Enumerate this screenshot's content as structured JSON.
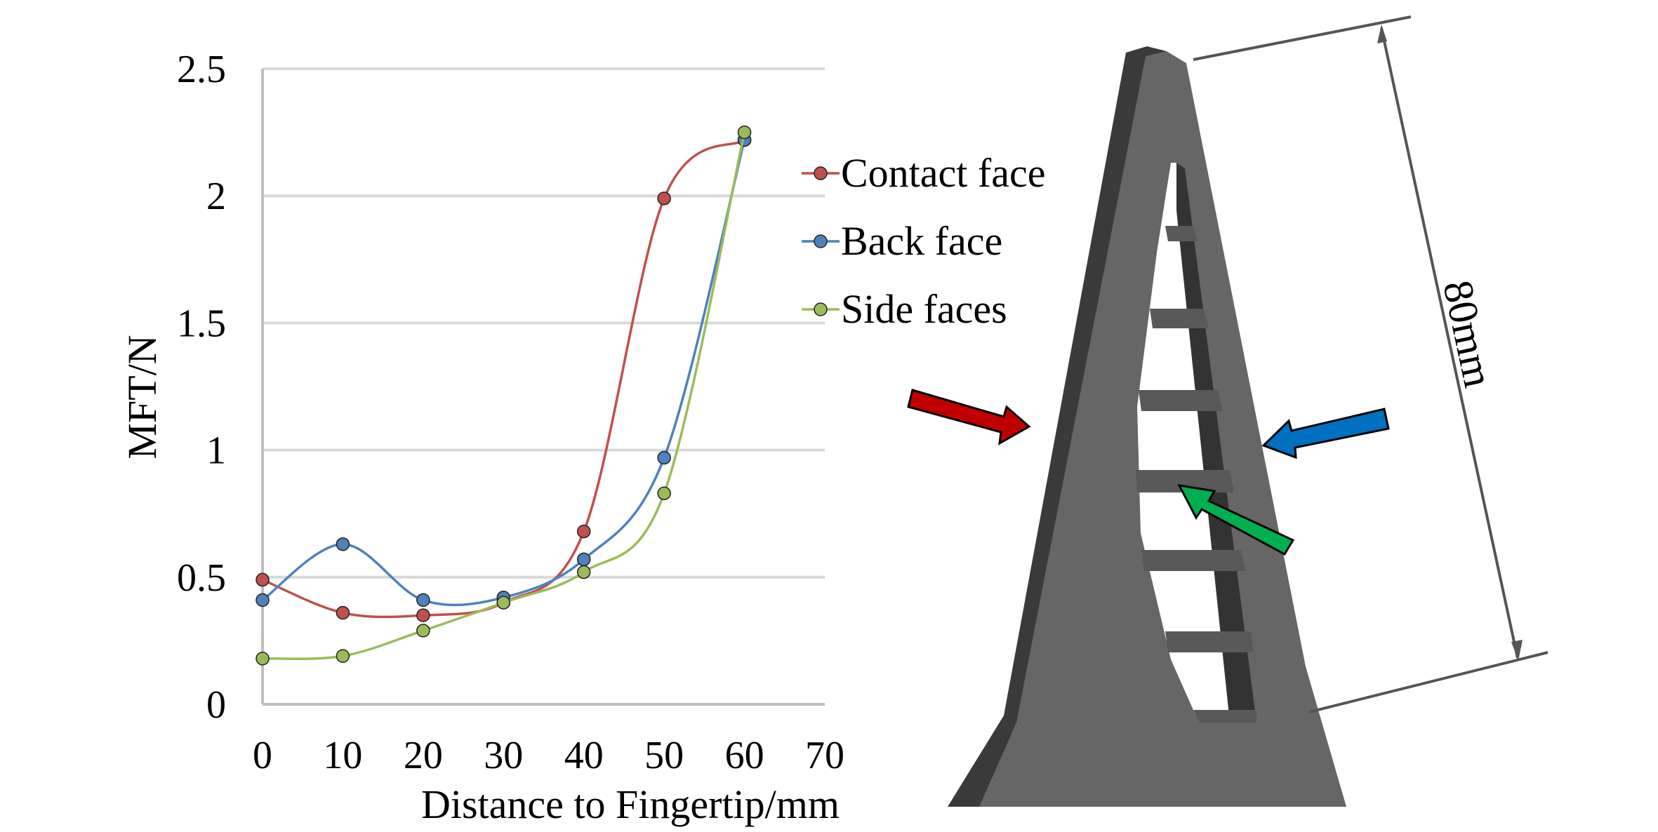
{
  "colors": {
    "contact_face": "#C0504D",
    "back_face": "#4F81BD",
    "side_faces": "#9BBB59",
    "grid": "#D9D9D9",
    "axis": "#BFBFBF",
    "part_dark": "#3a3a3a",
    "part_face": "#666666",
    "arrow_red": "#C00000",
    "arrow_blue": "#0070C0",
    "arrow_green": "#00B050"
  },
  "chart_data": {
    "type": "line",
    "title": "",
    "xlabel": "Distance to Fingertip/mm",
    "ylabel": "MFT/N",
    "xlim": [
      0,
      70
    ],
    "ylim": [
      0,
      2.5
    ],
    "x_ticks": [
      "0",
      "10",
      "20",
      "30",
      "40",
      "50",
      "60",
      "70"
    ],
    "y_ticks": [
      "0",
      "0.5",
      "1",
      "1.5",
      "2",
      "2.5"
    ],
    "x": [
      0,
      10,
      20,
      30,
      40,
      50,
      60
    ],
    "grid": "horizontal",
    "smooth": true,
    "legend_position": "right",
    "series": [
      {
        "name": "Contact face",
        "color_key": "contact_face",
        "values": [
          0.49,
          0.36,
          0.35,
          0.4,
          0.68,
          1.99,
          2.22
        ]
      },
      {
        "name": "Back face",
        "color_key": "back_face",
        "values": [
          0.41,
          0.63,
          0.41,
          0.42,
          0.57,
          0.97,
          2.22
        ]
      },
      {
        "name": "Side faces",
        "color_key": "side_faces",
        "values": [
          0.18,
          0.19,
          0.29,
          0.4,
          0.52,
          0.83,
          2.25
        ]
      }
    ]
  },
  "figure": {
    "dimension_label": "80mm"
  }
}
